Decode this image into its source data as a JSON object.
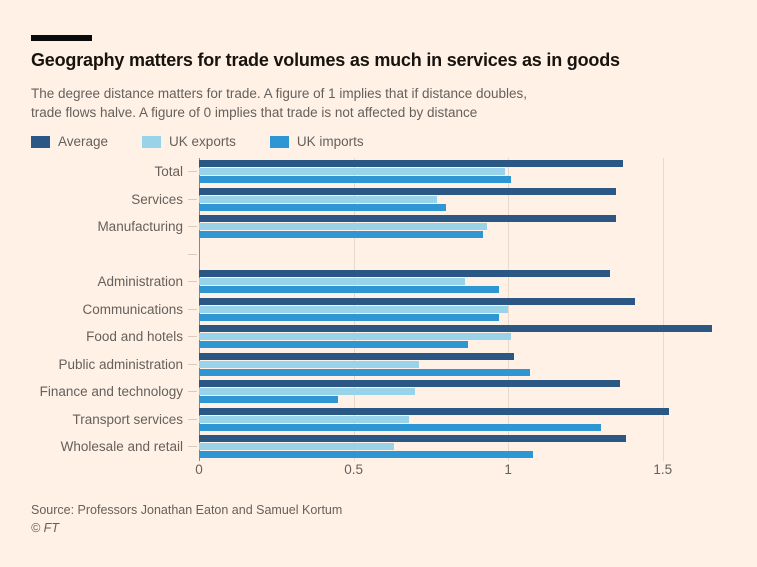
{
  "header": {
    "title": "Geography matters for trade volumes as much in services as in goods",
    "subtitle_line1": "The degree distance matters for trade. A figure of 1 implies that if distance doubles,",
    "subtitle_line2": "trade flows halve. A figure of 0 implies that trade is not affected by distance"
  },
  "chart_data": {
    "type": "bar",
    "orientation": "horizontal",
    "legend": [
      {
        "label": "Average",
        "color": "#2a5784"
      },
      {
        "label": "UK exports",
        "color": "#98d3ea"
      },
      {
        "label": "UK imports",
        "color": "#2e96d3"
      }
    ],
    "xlim": [
      0,
      1.685
    ],
    "x_ticks": [
      0,
      0.5,
      1,
      1.5
    ],
    "x_tick_labels": [
      "0",
      "0.5",
      "1",
      "1.5"
    ],
    "grid": "vertical-only",
    "legend_position": "top-left",
    "groups": [
      {
        "categories": [
          "Total",
          "Services",
          "Manufacturing"
        ],
        "series": [
          {
            "name": "Average",
            "values": [
              1.37,
              1.35,
              1.35
            ]
          },
          {
            "name": "UK exports",
            "values": [
              0.99,
              0.77,
              0.93
            ]
          },
          {
            "name": "UK imports",
            "values": [
              1.01,
              0.8,
              0.92
            ]
          }
        ]
      },
      {
        "categories": [
          "Administration",
          "Communications",
          "Food and hotels",
          "Public administration",
          "Finance and technology",
          "Transport services",
          "Wholesale and retail"
        ],
        "series": [
          {
            "name": "Average",
            "values": [
              1.33,
              1.41,
              1.66,
              1.02,
              1.36,
              1.52,
              1.38
            ]
          },
          {
            "name": "UK exports",
            "values": [
              0.86,
              1.0,
              1.01,
              0.71,
              0.7,
              0.68,
              0.63
            ]
          },
          {
            "name": "UK imports",
            "values": [
              0.97,
              0.97,
              0.87,
              1.07,
              0.45,
              1.3,
              1.08
            ]
          }
        ]
      }
    ]
  },
  "footer": {
    "source": "Source: Professors Jonathan Eaton and Samuel Kortum",
    "copyright": "© FT"
  },
  "colors": {
    "background": "#fff1e5",
    "title_text": "#17140f",
    "muted_text": "#66605c",
    "axis_line": "#8d8680",
    "gridline": "#e7dacb"
  }
}
